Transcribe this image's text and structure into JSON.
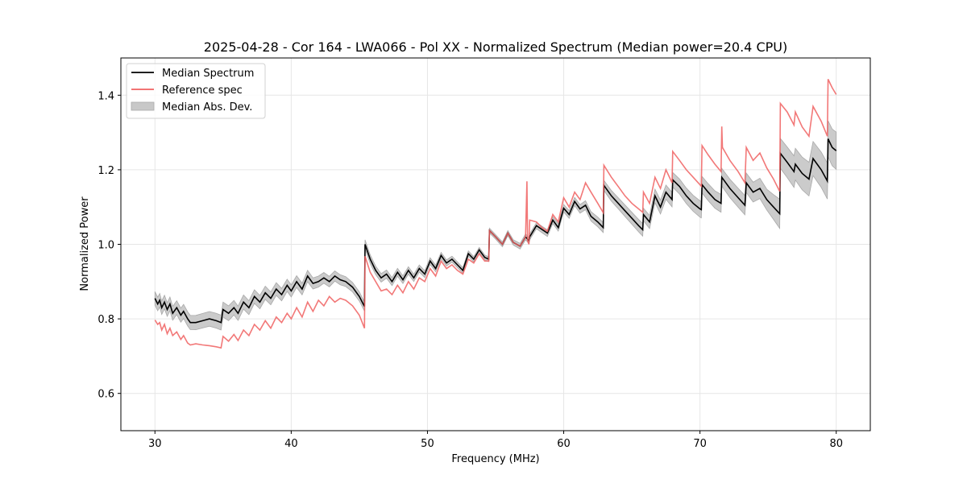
{
  "chart_data": {
    "type": "line",
    "title": "2025-04-28 - Cor 164 - LWA066 - Pol XX - Normalized Spectrum (Median power=20.4 CPU)",
    "xlabel": "Frequency (MHz)",
    "ylabel": "Normalized Power",
    "xlim": [
      27.5,
      82.5
    ],
    "ylim": [
      0.5,
      1.5
    ],
    "xticks": [
      30,
      40,
      50,
      60,
      70,
      80
    ],
    "yticks": [
      0.6,
      0.8,
      1.0,
      1.2,
      1.4
    ],
    "xtick_labels": [
      "30",
      "40",
      "50",
      "60",
      "70",
      "80"
    ],
    "ytick_labels": [
      "0.6",
      "0.8",
      "1.0",
      "1.2",
      "1.4"
    ],
    "grid": true,
    "legend_position": "top-left",
    "legend": [
      {
        "label": "Median Spectrum",
        "kind": "line",
        "color": "#000000"
      },
      {
        "label": "Reference spec",
        "kind": "line",
        "color": "#f06060"
      },
      {
        "label": "Median Abs. Dev.",
        "kind": "fill",
        "color": "#c8c8c8"
      }
    ],
    "series": [
      {
        "name": "Median Spectrum",
        "color": "#000000",
        "x": [
          30.0,
          30.2,
          30.35,
          30.5,
          30.7,
          30.9,
          31.1,
          31.3,
          31.6,
          31.9,
          32.1,
          32.4,
          32.6,
          33.0,
          33.5,
          34.0,
          34.5,
          34.85,
          35.0,
          35.4,
          35.8,
          36.1,
          36.5,
          36.9,
          37.3,
          37.7,
          38.1,
          38.5,
          38.9,
          39.3,
          39.7,
          40.0,
          40.4,
          40.8,
          41.2,
          41.6,
          42.0,
          42.4,
          42.8,
          43.2,
          43.6,
          44.0,
          44.5,
          45.0,
          45.38,
          45.42,
          45.8,
          46.2,
          46.6,
          47.0,
          47.4,
          47.8,
          48.2,
          48.6,
          49.0,
          49.4,
          49.8,
          50.2,
          50.6,
          51.0,
          51.4,
          51.8,
          52.2,
          52.6,
          53.0,
          53.4,
          53.8,
          54.2,
          54.5,
          54.55,
          55.0,
          55.5,
          55.9,
          56.3,
          56.8,
          57.2,
          57.45,
          57.5,
          58.0,
          58.4,
          58.8,
          59.2,
          59.6,
          60.0,
          60.4,
          60.8,
          61.2,
          61.6,
          62.0,
          62.5,
          62.9,
          62.95,
          63.5,
          64.0,
          64.5,
          65.0,
          65.5,
          65.8,
          65.85,
          66.3,
          66.7,
          67.1,
          67.5,
          67.95,
          68.0,
          68.5,
          69.0,
          69.5,
          70.0,
          70.1,
          70.15,
          70.6,
          71.1,
          71.55,
          71.6,
          72.2,
          72.8,
          73.3,
          73.4,
          73.9,
          74.4,
          74.9,
          75.4,
          75.85,
          75.9,
          76.4,
          76.9,
          77.0,
          77.5,
          78.0,
          78.3,
          78.9,
          79.35,
          79.4,
          79.7,
          80.0
        ],
        "y": [
          0.855,
          0.84,
          0.85,
          0.83,
          0.845,
          0.825,
          0.84,
          0.815,
          0.83,
          0.81,
          0.82,
          0.8,
          0.79,
          0.79,
          0.795,
          0.8,
          0.795,
          0.79,
          0.825,
          0.815,
          0.83,
          0.815,
          0.845,
          0.83,
          0.86,
          0.845,
          0.87,
          0.855,
          0.88,
          0.865,
          0.89,
          0.875,
          0.9,
          0.88,
          0.915,
          0.895,
          0.9,
          0.91,
          0.9,
          0.915,
          0.905,
          0.9,
          0.885,
          0.86,
          0.833,
          1.0,
          0.96,
          0.93,
          0.91,
          0.92,
          0.9,
          0.925,
          0.905,
          0.93,
          0.91,
          0.935,
          0.92,
          0.955,
          0.935,
          0.97,
          0.95,
          0.96,
          0.945,
          0.93,
          0.975,
          0.96,
          0.985,
          0.965,
          0.96,
          1.037,
          1.02,
          1.0,
          1.03,
          1.005,
          0.995,
          1.02,
          1.01,
          1.02,
          1.05,
          1.04,
          1.03,
          1.065,
          1.045,
          1.097,
          1.08,
          1.115,
          1.095,
          1.105,
          1.075,
          1.06,
          1.045,
          1.158,
          1.13,
          1.11,
          1.09,
          1.07,
          1.05,
          1.039,
          1.08,
          1.06,
          1.13,
          1.1,
          1.14,
          1.12,
          1.173,
          1.155,
          1.13,
          1.11,
          1.095,
          1.093,
          1.16,
          1.14,
          1.12,
          1.11,
          1.18,
          1.15,
          1.125,
          1.105,
          1.165,
          1.14,
          1.15,
          1.12,
          1.1,
          1.082,
          1.244,
          1.22,
          1.195,
          1.215,
          1.19,
          1.175,
          1.23,
          1.2,
          1.17,
          1.283,
          1.26,
          1.251
        ]
      },
      {
        "name": "Reference spec",
        "color": "#f06060",
        "x": [
          30.0,
          30.2,
          30.35,
          30.5,
          30.7,
          30.9,
          31.1,
          31.3,
          31.6,
          31.9,
          32.1,
          32.4,
          32.6,
          33.0,
          33.5,
          34.0,
          34.5,
          34.85,
          35.0,
          35.4,
          35.8,
          36.1,
          36.5,
          36.9,
          37.3,
          37.7,
          38.1,
          38.5,
          38.9,
          39.3,
          39.7,
          40.0,
          40.4,
          40.8,
          41.2,
          41.6,
          42.0,
          42.4,
          42.8,
          43.2,
          43.6,
          44.0,
          44.5,
          45.0,
          45.38,
          45.42,
          45.8,
          46.2,
          46.6,
          47.0,
          47.4,
          47.8,
          48.2,
          48.6,
          49.0,
          49.4,
          49.8,
          50.2,
          50.6,
          51.0,
          51.4,
          51.8,
          52.2,
          52.6,
          53.0,
          53.4,
          53.8,
          54.2,
          54.5,
          54.55,
          55.0,
          55.5,
          55.9,
          56.3,
          56.8,
          57.2,
          57.3,
          57.35,
          57.45,
          57.5,
          58.0,
          58.4,
          58.8,
          59.2,
          59.6,
          60.0,
          60.4,
          60.8,
          61.2,
          61.6,
          62.0,
          62.5,
          62.9,
          62.95,
          63.5,
          64.0,
          64.5,
          65.0,
          65.5,
          65.8,
          65.85,
          66.3,
          66.7,
          67.1,
          67.5,
          67.95,
          68.0,
          68.5,
          69.0,
          69.5,
          70.0,
          70.1,
          70.15,
          70.6,
          71.1,
          71.55,
          71.6,
          71.65,
          72.2,
          72.8,
          73.3,
          73.4,
          73.9,
          74.4,
          74.9,
          75.4,
          75.85,
          75.9,
          76.4,
          76.9,
          77.0,
          77.5,
          78.0,
          78.3,
          78.9,
          79.35,
          79.4,
          79.7,
          80.0
        ],
        "y": [
          0.797,
          0.785,
          0.79,
          0.77,
          0.785,
          0.76,
          0.775,
          0.755,
          0.765,
          0.745,
          0.755,
          0.735,
          0.73,
          0.733,
          0.73,
          0.728,
          0.725,
          0.722,
          0.753,
          0.74,
          0.758,
          0.742,
          0.77,
          0.755,
          0.785,
          0.77,
          0.795,
          0.775,
          0.805,
          0.79,
          0.815,
          0.8,
          0.83,
          0.805,
          0.845,
          0.82,
          0.85,
          0.835,
          0.86,
          0.845,
          0.855,
          0.85,
          0.835,
          0.81,
          0.775,
          0.968,
          0.925,
          0.9,
          0.875,
          0.88,
          0.865,
          0.89,
          0.87,
          0.9,
          0.88,
          0.91,
          0.9,
          0.935,
          0.915,
          0.955,
          0.935,
          0.945,
          0.93,
          0.92,
          0.96,
          0.95,
          0.975,
          0.955,
          0.955,
          1.037,
          1.02,
          1.0,
          1.03,
          1.005,
          0.995,
          1.02,
          1.169,
          1.01,
          1.0,
          1.065,
          1.06,
          1.045,
          1.035,
          1.08,
          1.06,
          1.125,
          1.1,
          1.14,
          1.12,
          1.165,
          1.14,
          1.11,
          1.085,
          1.212,
          1.18,
          1.155,
          1.13,
          1.11,
          1.095,
          1.086,
          1.14,
          1.11,
          1.18,
          1.15,
          1.2,
          1.165,
          1.249,
          1.225,
          1.2,
          1.18,
          1.16,
          1.156,
          1.265,
          1.24,
          1.215,
          1.195,
          1.316,
          1.26,
          1.225,
          1.195,
          1.165,
          1.26,
          1.225,
          1.245,
          1.205,
          1.175,
          1.142,
          1.378,
          1.355,
          1.32,
          1.355,
          1.315,
          1.29,
          1.37,
          1.33,
          1.29,
          1.443,
          1.42,
          1.402
        ]
      }
    ],
    "mad_band": {
      "name": "Median Abs. Dev.",
      "color": "#c8c8c8",
      "x": [
        30,
        35,
        45.4,
        55,
        60,
        65,
        70,
        75,
        75.9,
        80
      ],
      "halfwidth": [
        0.018,
        0.02,
        0.012,
        0.006,
        0.01,
        0.016,
        0.022,
        0.028,
        0.04,
        0.05
      ]
    }
  }
}
